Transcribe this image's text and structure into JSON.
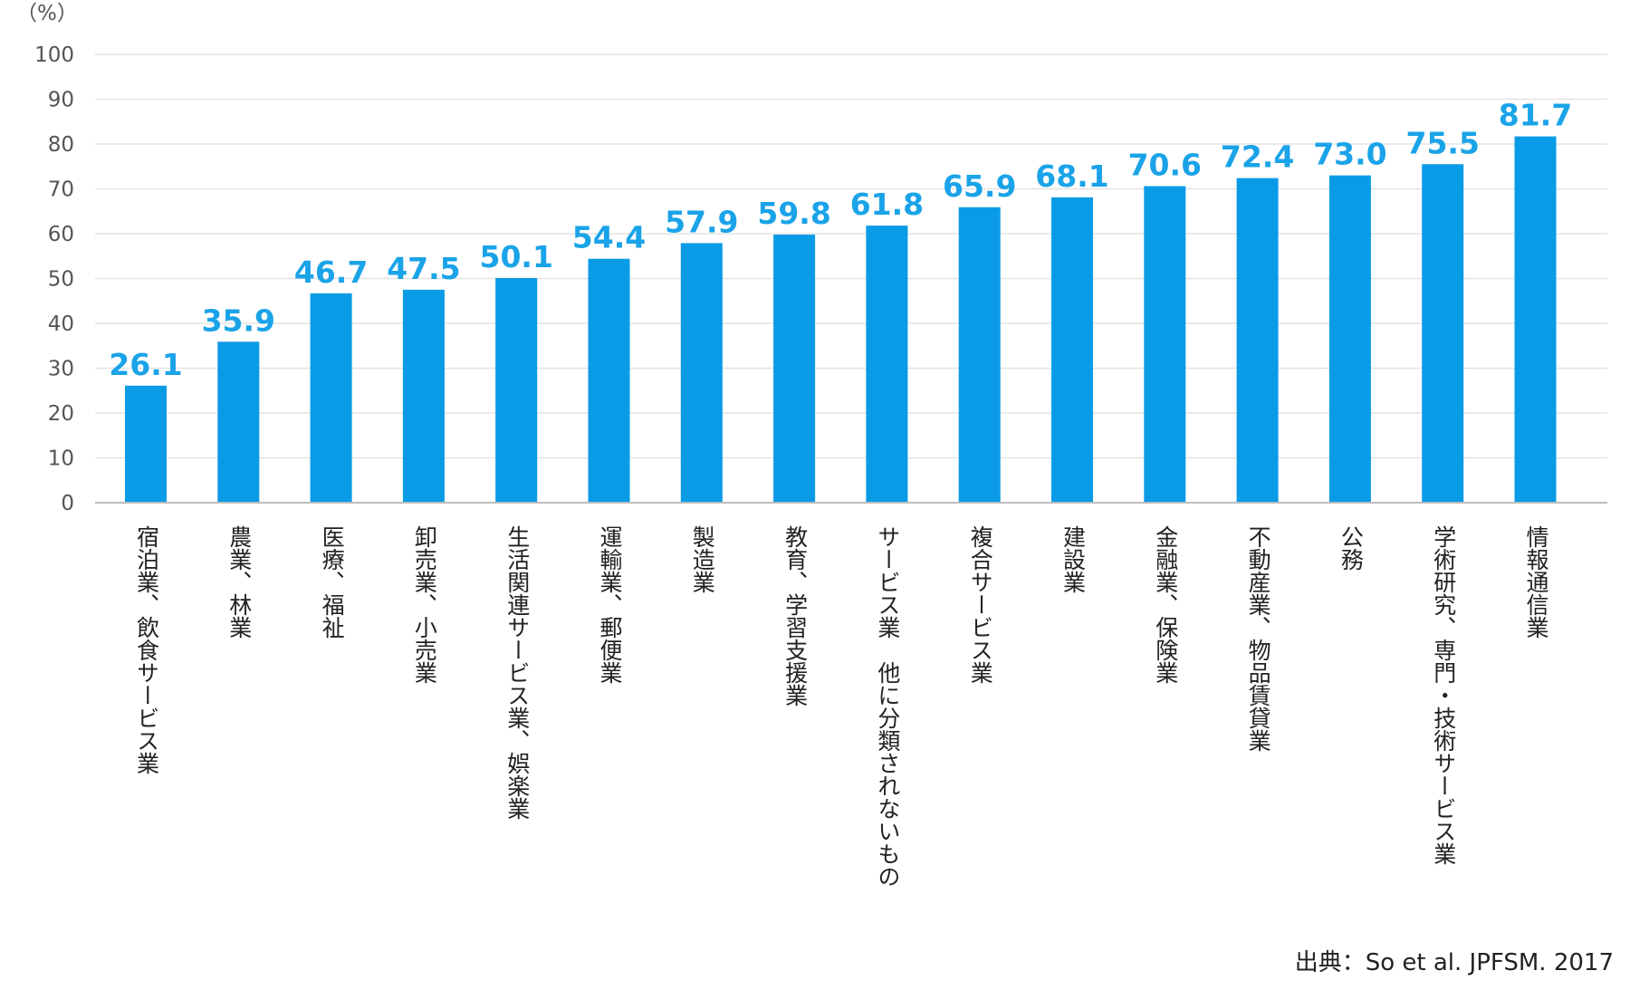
{
  "chart_data": {
    "type": "bar",
    "unit_label": "（%）",
    "categories": [
      "宿泊業、飲食サービス業",
      "農業、林業",
      "医療、福祉",
      "卸売業、小売業",
      "生活関連サービス業、娯楽業",
      "運輸業、郵便業",
      "製造業",
      "教育、学習支援業",
      "サービス業　他に分類されないもの",
      "複合サービス業",
      "建設業",
      "金融業、保険業",
      "不動産業、物品賃貸業",
      "公務",
      "学術研究、専門・技術サービス業",
      "情報通信業"
    ],
    "values": [
      26.1,
      35.9,
      46.7,
      47.5,
      50.1,
      54.4,
      57.9,
      59.8,
      61.8,
      65.9,
      68.1,
      70.6,
      72.4,
      73.0,
      75.5,
      81.7
    ],
    "value_labels": [
      "26.1",
      "35.9",
      "46.7",
      "47.5",
      "50.1",
      "54.4",
      "57.9",
      "59.8",
      "61.8",
      "65.9",
      "68.1",
      "70.6",
      "72.4",
      "73.0",
      "75.5",
      "81.7"
    ],
    "yticks": [
      "0",
      "10",
      "20",
      "30",
      "40",
      "50",
      "60",
      "70",
      "80",
      "90",
      "100"
    ],
    "ylim": [
      0,
      100
    ],
    "grid": true,
    "bar_color": "#0a9be6",
    "label_color": "#1aa3e8"
  },
  "source": "出典：So et al. JPFSM. 2017"
}
